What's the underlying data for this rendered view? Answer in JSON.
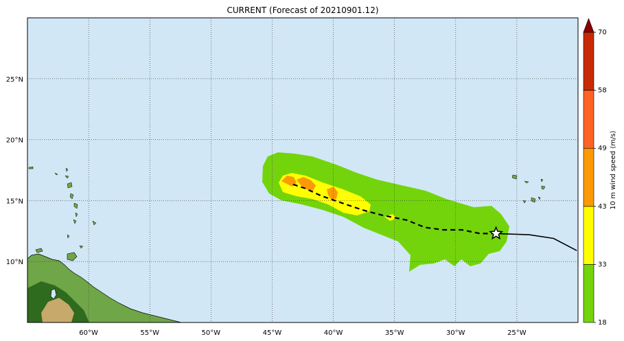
{
  "title": "CURRENT (Forecast of 20210901.12)",
  "map": {
    "lon_range": [
      -65,
      -20
    ],
    "lat_range": [
      5,
      30
    ],
    "ocean_color": "#d1e7f5",
    "grid": "dotted",
    "lon_ticks": [
      {
        "value": -60,
        "label": "60°W"
      },
      {
        "value": -55,
        "label": "55°W"
      },
      {
        "value": -50,
        "label": "50°W"
      },
      {
        "value": -45,
        "label": "45°W"
      },
      {
        "value": -40,
        "label": "40°W"
      },
      {
        "value": -35,
        "label": "35°W"
      },
      {
        "value": -30,
        "label": "30°W"
      },
      {
        "value": -25,
        "label": "25°W"
      }
    ],
    "lat_ticks": [
      {
        "value": 10,
        "label": "10°N"
      },
      {
        "value": 15,
        "label": "15°N"
      },
      {
        "value": 20,
        "label": "20°N"
      },
      {
        "value": 25,
        "label": "25°N"
      }
    ]
  },
  "storm": {
    "current_position": {
      "lon": -26.7,
      "lat": 12.3
    },
    "past_track": [
      {
        "lon": -20.1,
        "lat": 10.9
      },
      {
        "lon": -22.0,
        "lat": 11.9
      },
      {
        "lon": -24.0,
        "lat": 12.2
      },
      {
        "lon": -26.7,
        "lat": 12.3
      }
    ],
    "forecast_track": [
      {
        "lon": -26.7,
        "lat": 12.3
      },
      {
        "lon": -28.0,
        "lat": 12.3
      },
      {
        "lon": -29.5,
        "lat": 12.6
      },
      {
        "lon": -31.0,
        "lat": 12.6
      },
      {
        "lon": -32.5,
        "lat": 12.8
      },
      {
        "lon": -34.0,
        "lat": 13.4
      },
      {
        "lon": -36.0,
        "lat": 13.8
      },
      {
        "lon": -37.5,
        "lat": 14.2
      },
      {
        "lon": -39.0,
        "lat": 14.7
      },
      {
        "lon": -41.0,
        "lat": 15.4
      },
      {
        "lon": -42.3,
        "lat": 16.0
      },
      {
        "lon": -43.5,
        "lat": 16.4
      }
    ]
  },
  "colorbar": {
    "label": "10 m wind speed (m/s)",
    "levels": [
      18,
      33,
      43,
      49,
      58,
      70
    ],
    "colors": [
      "#73d40c",
      "#ffff00",
      "#fb9a05",
      "#fd6323",
      "#c82a06",
      "#8b0000"
    ],
    "tick_labels": [
      "18",
      "33",
      "43",
      "49",
      "58",
      "70"
    ]
  },
  "colors": {
    "land_dark": "#2e6b1e",
    "land_light": "#6fa648",
    "land_tan": "#c7a96b",
    "track": "#000000"
  }
}
